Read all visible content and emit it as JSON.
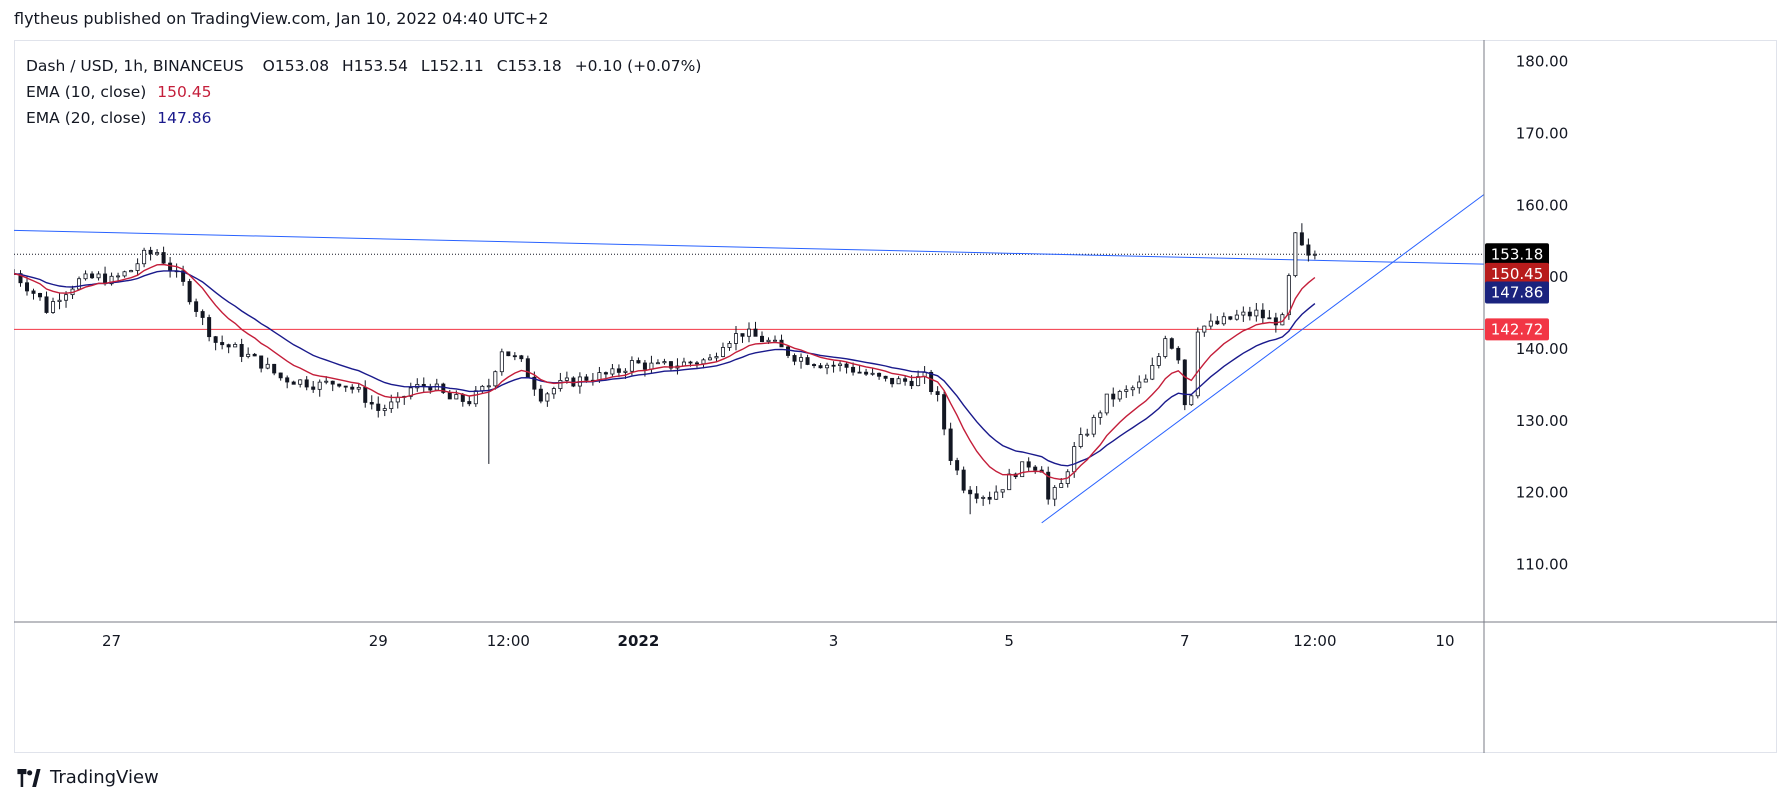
{
  "header": {
    "published": "flytheus published on TradingView.com, Jan 10, 2022 04:40 UTC+2"
  },
  "legend": {
    "symbol": "Dash / USD, 1h, BINANCEUS",
    "open": "O153.08",
    "high": "H153.54",
    "low": "L152.11",
    "close": "C153.18",
    "change": "+0.10 (+0.07%)",
    "ema10_label": "EMA (10, close)",
    "ema10_value": "150.45",
    "ema20_label": "EMA (20, close)",
    "ema20_value": "147.86"
  },
  "footer": {
    "brand": "TradingView"
  },
  "colors": {
    "up": "#ffffff",
    "down": "#131722",
    "ema10": "#c41e3a",
    "ema20": "#1a1a8c",
    "trendline": "#2962ff",
    "support": "#f23645",
    "price_tag": "#000000",
    "ema10_tag": "#b71c1c",
    "ema20_tag": "#1a237e",
    "support_tag": "#f23645"
  },
  "chart_data": {
    "type": "candlestick",
    "symbol": "Dash / USD",
    "interval": "1h",
    "exchange": "BINANCEUS",
    "y_axis": {
      "ticks": [
        "110.00",
        "120.00",
        "130.00",
        "140.00",
        "150.00",
        "160.00",
        "170.00",
        "180.00"
      ],
      "range": [
        102,
        183
      ]
    },
    "x_axis": {
      "ticks": [
        {
          "label": "27",
          "t": 22
        },
        {
          "label": "29",
          "t": 63
        },
        {
          "label": "12:00",
          "t": 83
        },
        {
          "label": "2022",
          "t": 103
        },
        {
          "label": "3",
          "t": 133
        },
        {
          "label": "5",
          "t": 160
        },
        {
          "label": "7",
          "t": 187
        },
        {
          "label": "12:00",
          "t": 207
        },
        {
          "label": "10",
          "t": 227
        }
      ],
      "range": [
        7,
        233
      ]
    },
    "keyframes": [
      [
        7,
        150.5
      ],
      [
        11,
        147
      ],
      [
        12,
        145.5
      ],
      [
        14,
        147.5
      ],
      [
        17,
        149.5
      ],
      [
        20,
        150
      ],
      [
        22,
        149.5
      ],
      [
        25,
        151
      ],
      [
        27,
        153
      ],
      [
        29,
        153.5
      ],
      [
        33,
        149
      ],
      [
        36,
        144
      ],
      [
        38,
        141
      ],
      [
        41,
        140
      ],
      [
        45,
        138
      ],
      [
        48,
        136
      ],
      [
        51,
        135.5
      ],
      [
        54,
        135
      ],
      [
        57,
        135.5
      ],
      [
        60,
        134
      ],
      [
        63,
        131.5
      ],
      [
        66,
        132.5
      ],
      [
        68,
        134.5
      ],
      [
        71,
        135
      ],
      [
        74,
        133
      ],
      [
        77,
        132.8
      ],
      [
        80,
        135
      ],
      [
        82,
        140
      ],
      [
        85,
        138
      ],
      [
        88,
        133.5
      ],
      [
        91,
        135
      ],
      [
        95,
        136
      ],
      [
        99,
        136.5
      ],
      [
        102,
        138
      ],
      [
        106,
        137.5
      ],
      [
        110,
        138
      ],
      [
        114,
        138.5
      ],
      [
        116,
        141
      ],
      [
        119,
        142.3
      ],
      [
        123,
        141
      ],
      [
        127,
        139
      ],
      [
        131,
        138
      ],
      [
        135,
        137.5
      ],
      [
        138,
        136.5
      ],
      [
        141,
        135.5
      ],
      [
        144,
        135.5
      ],
      [
        147,
        136
      ],
      [
        149,
        133
      ],
      [
        151,
        125
      ],
      [
        153,
        121
      ],
      [
        155,
        120
      ],
      [
        157,
        119.5
      ],
      [
        159,
        121
      ],
      [
        161,
        123
      ],
      [
        163,
        124
      ],
      [
        165,
        123.5
      ],
      [
        166,
        119
      ],
      [
        168,
        121
      ],
      [
        170,
        126
      ],
      [
        173,
        130
      ],
      [
        175,
        133
      ],
      [
        178,
        134
      ],
      [
        181,
        135.5
      ],
      [
        183,
        139
      ],
      [
        184,
        142
      ],
      [
        186,
        139
      ],
      [
        187,
        132.5
      ],
      [
        188,
        134
      ],
      [
        189,
        143
      ],
      [
        192,
        143.5
      ],
      [
        195,
        144.5
      ],
      [
        198,
        145
      ],
      [
        200,
        144
      ],
      [
        202,
        144
      ],
      [
        204,
        155.5
      ],
      [
        206,
        152.5
      ],
      [
        207,
        153.18
      ]
    ],
    "ema10": {
      "period": 10,
      "last": 150.45
    },
    "ema20": {
      "period": 20,
      "last": 147.86
    },
    "last_price": 153.18,
    "support_level": 142.72,
    "trendlines": [
      {
        "name": "descending-resistance",
        "from": [
          7,
          156.5
        ],
        "to": [
          233,
          151.8
        ]
      },
      {
        "name": "ascending-support",
        "from": [
          165,
          115.8
        ],
        "to": [
          233,
          161.5
        ]
      }
    ],
    "price_labels": [
      {
        "name": "last-price",
        "value": 153.18,
        "text": "153.18"
      },
      {
        "name": "ema10",
        "value": 150.45,
        "text": "150.45"
      },
      {
        "name": "ema20",
        "value": 147.86,
        "text": "147.86"
      },
      {
        "name": "support",
        "value": 142.72,
        "text": "142.72"
      }
    ]
  }
}
